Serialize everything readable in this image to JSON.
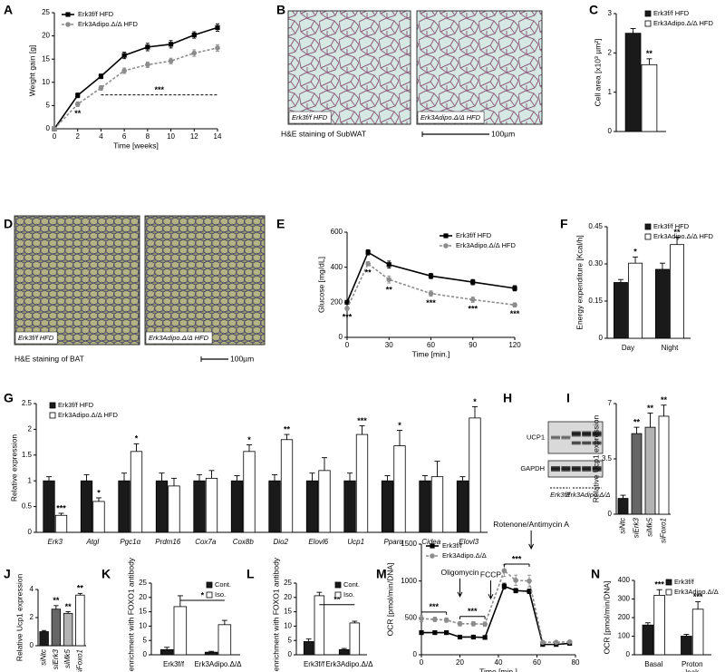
{
  "chart_data": [
    {
      "panel": "A",
      "type": "line",
      "xlabel": "Time [weeks]",
      "ylabel": "Weight gain [g]",
      "x": [
        0,
        2,
        4,
        6,
        8,
        10,
        12,
        14
      ],
      "xlim": [
        0,
        14
      ],
      "xticks": [
        0,
        2,
        4,
        6,
        8,
        10,
        12,
        14
      ],
      "ylim": [
        0,
        25
      ],
      "yticks": [
        0,
        5,
        10,
        15,
        20,
        25
      ],
      "legend": "upper left",
      "series": [
        {
          "name": "Erk3f/f HFD",
          "color": "#000000",
          "marker": "square",
          "dashed": false,
          "values": [
            0,
            7.2,
            11.3,
            15.8,
            17.6,
            18.2,
            20.2,
            21.8
          ],
          "errors": [
            0.2,
            0.5,
            0.5,
            0.7,
            0.8,
            0.8,
            0.7,
            0.8
          ]
        },
        {
          "name": "Erk3Adipo.Δ/Δ HFD",
          "color": "#8c8c8c",
          "marker": "circle",
          "dashed": true,
          "values": [
            0,
            5.3,
            8.8,
            12.5,
            13.8,
            14.6,
            16.3,
            17.4
          ],
          "errors": [
            0.2,
            0.5,
            0.5,
            0.6,
            0.6,
            0.6,
            0.7,
            0.7
          ],
          "significance": [
            null,
            "**",
            null,
            null,
            null,
            null,
            null,
            null
          ]
        }
      ],
      "brackets": [
        {
          "text": "***",
          "x1": 4,
          "x2": 14,
          "y": 7.3
        }
      ]
    },
    {
      "panel": "B",
      "type": "micrograph",
      "images": [
        "Erk3f/f HFD",
        "Erk3Adipo.Δ/Δ HFD"
      ],
      "caption": "H&E staining of SubWAT",
      "scale_bar": "100µm"
    },
    {
      "panel": "C",
      "type": "bar",
      "ylabel": "Cell area [x10³ µm²]",
      "categories": [
        null
      ],
      "ylim": [
        0,
        3
      ],
      "yticks": [
        0,
        1,
        2,
        3
      ],
      "legend": "upper right",
      "series": [
        {
          "name": "Erk3f/f HFD",
          "color": "#1a1a1a",
          "values": [
            2.5
          ],
          "errors": [
            0.12
          ]
        },
        {
          "name": "Erk3Adipo.Δ/Δ HFD",
          "color": "#ffffff",
          "values": [
            1.7
          ],
          "errors": [
            0.15
          ],
          "significance": [
            "**"
          ]
        }
      ]
    },
    {
      "panel": "D",
      "type": "micrograph",
      "images": [
        "Erk3f/f HFD",
        "Erk3Adipo.Δ/Δ HFD"
      ],
      "caption": "H&E staining of BAT",
      "scale_bar": "100µm"
    },
    {
      "panel": "E",
      "type": "line",
      "xlabel": "Time [min.]",
      "ylabel": "Glucose [mg/dL]",
      "x": [
        0,
        15,
        30,
        60,
        90,
        120
      ],
      "xlim": [
        0,
        120
      ],
      "xticks": [
        0,
        30,
        60,
        90,
        120
      ],
      "ylim": [
        0,
        600
      ],
      "yticks": [
        0,
        200,
        400,
        600
      ],
      "legend": "upper right",
      "series": [
        {
          "name": "Erk3f/f HFD",
          "color": "#000000",
          "marker": "square",
          "dashed": false,
          "values": [
            200,
            485,
            415,
            350,
            315,
            280
          ],
          "errors": [
            8,
            15,
            20,
            15,
            15,
            15
          ]
        },
        {
          "name": "Erk3Adipo.Δ/Δ HFD",
          "color": "#8c8c8c",
          "marker": "circle",
          "dashed": true,
          "values": [
            165,
            420,
            330,
            250,
            215,
            185
          ],
          "errors": [
            10,
            12,
            20,
            15,
            15,
            12
          ],
          "significance": [
            "***",
            "**",
            "**",
            "***",
            "***",
            "***"
          ]
        }
      ]
    },
    {
      "panel": "F",
      "type": "bar",
      "ylabel": "Energy expenditure [Kcal/h]",
      "categories": [
        "Day",
        "Night"
      ],
      "ylim": [
        0,
        0.45
      ],
      "yticks": [
        0,
        0.15,
        {
          "value": 0.3,
          "label": "0.30"
        },
        0.45
      ],
      "legend": "upper right",
      "series": [
        {
          "name": "Erk3f/f HFD",
          "color": "#1a1a1a",
          "values": [
            0.225,
            0.278
          ],
          "errors": [
            0.012,
            0.025
          ]
        },
        {
          "name": "Erk3Adipo.Δ/Δ HFD",
          "color": "#ffffff",
          "values": [
            0.303,
            0.378
          ],
          "errors": [
            0.025,
            0.03
          ],
          "significance": [
            "*",
            "**"
          ]
        }
      ]
    },
    {
      "panel": "G",
      "type": "bar",
      "ylabel": "Relative expression",
      "categories": [
        "Erk3",
        "Atgl",
        "Pgc1α",
        "Prdm16",
        "Cox7a",
        "Cox8b",
        "Dio2",
        "Elovl6",
        "Ucp1",
        "Pparα",
        "Cidea",
        "Elovl3"
      ],
      "ylim": [
        0,
        2.5
      ],
      "yticks": [
        0,
        0.5,
        1,
        1.5,
        2,
        2.5
      ],
      "legend": "upper left",
      "series": [
        {
          "name": "Erk3f/f HFD",
          "color": "#1a1a1a",
          "values": [
            1,
            1,
            1,
            1,
            1,
            1,
            1,
            1,
            1,
            1,
            1,
            1
          ],
          "errors": [
            0.08,
            0.12,
            0.15,
            0.15,
            0.12,
            0.1,
            0.12,
            0.15,
            0.15,
            0.1,
            0.1,
            0.08
          ]
        },
        {
          "name": "Erk3Adipo.Δ/Δ HFD",
          "color": "#ffffff",
          "values": [
            0.33,
            0.6,
            1.57,
            0.9,
            1.05,
            1.57,
            1.8,
            1.2,
            1.9,
            1.68,
            1.08,
            2.22
          ],
          "errors": [
            0.04,
            0.07,
            0.15,
            0.15,
            0.15,
            0.13,
            0.1,
            0.25,
            0.17,
            0.3,
            0.3,
            0.22
          ],
          "significance": [
            "***",
            "*",
            "*",
            null,
            null,
            "*",
            "**",
            null,
            "***",
            "*",
            null,
            "*"
          ]
        }
      ]
    },
    {
      "panel": "H",
      "type": "blot",
      "bands": [
        "UCP1",
        "GAPDH"
      ],
      "groups": [
        "Erk3f/f",
        "Erk3Adipo.Δ/Δ"
      ]
    },
    {
      "panel": "I",
      "type": "bar",
      "ylabel": "Relative Ucp1 expression",
      "categories": [
        "siNtc",
        "siErk3",
        "siMk5",
        "siFoxo1"
      ],
      "ylim": [
        0,
        7
      ],
      "yticks": [
        0,
        3.5,
        7
      ],
      "series": [
        {
          "colors": [
            "#1a1a1a",
            "#666666",
            "#b3b3b3",
            "#ffffff"
          ],
          "values": [
            1,
            5.1,
            5.5,
            6.2
          ],
          "errors": [
            0.2,
            0.4,
            0.9,
            0.7
          ],
          "significance": [
            null,
            "**",
            "**",
            "**"
          ]
        }
      ]
    },
    {
      "panel": "J",
      "type": "bar",
      "ylabel": "Relative Ucp1 expression",
      "categories": [
        "siNtc",
        "siErk3",
        "siMk5",
        "siFoxo1"
      ],
      "ylim": [
        0,
        4
      ],
      "yticks": [
        0,
        2,
        4
      ],
      "series": [
        {
          "colors": [
            "#1a1a1a",
            "#666666",
            "#b3b3b3",
            "#ffffff"
          ],
          "values": [
            1,
            2.6,
            2.3,
            3.6
          ],
          "errors": [
            0.08,
            0.25,
            0.12,
            0.12
          ],
          "significance": [
            null,
            "**",
            "**",
            "**"
          ]
        }
      ]
    },
    {
      "panel": "K",
      "type": "bar",
      "ylabel": "% enrichment with FOXO1 antibody",
      "categories": [
        "Erk3f/f",
        "Erk3Adipo.Δ/Δ"
      ],
      "ylim": [
        0,
        25
      ],
      "yticks": [
        0,
        5,
        10,
        15,
        20,
        25
      ],
      "legend": "upper right",
      "series": [
        {
          "name": "Cont.",
          "color": "#1a1a1a",
          "values": [
            1.8,
            0.9
          ],
          "errors": [
            0.8,
            0.3
          ]
        },
        {
          "name": "Iso.",
          "color": "#ffffff",
          "values": [
            16.8,
            10.5
          ],
          "errors": [
            3.8,
            1.5
          ]
        }
      ],
      "bracket": {
        "text": "*",
        "y": 19
      }
    },
    {
      "panel": "L",
      "type": "bar",
      "ylabel": "% enrichment with FOXO1 antibody",
      "categories": [
        "Erk3f/f",
        "Erk3Adipo.Δ/Δ"
      ],
      "ylim": [
        0,
        25
      ],
      "yticks": [
        0,
        5,
        10,
        15,
        20,
        25
      ],
      "legend": "upper right",
      "series": [
        {
          "name": "Cont.",
          "color": "#1a1a1a",
          "values": [
            4.6,
            1.8
          ],
          "errors": [
            0.9,
            0.4
          ]
        },
        {
          "name": "Iso.",
          "color": "#ffffff",
          "values": [
            20.6,
            11.1
          ],
          "errors": [
            1.2,
            0.6
          ]
        }
      ],
      "bracket": {
        "text": "**",
        "y": 17.5
      }
    },
    {
      "panel": "M",
      "type": "line",
      "xlabel": "Time [min.]",
      "ylabel": "OCR [pmol/min/DNA]",
      "x": [
        0,
        7,
        13,
        20,
        27,
        33,
        43,
        49,
        56,
        63,
        70,
        77
      ],
      "xlim": [
        0,
        80
      ],
      "xticks": [
        0,
        20,
        40,
        60,
        80
      ],
      "ylim": [
        0,
        1500
      ],
      "yticks": [
        0,
        500,
        1000,
        1500
      ],
      "legend": "upper left",
      "series": [
        {
          "name": "Erk3f/f",
          "color": "#000000",
          "marker": "square",
          "dashed": false,
          "values": [
            300,
            300,
            300,
            240,
            240,
            235,
            930,
            870,
            860,
            140,
            140,
            155
          ],
          "errors": [
            15,
            15,
            15,
            15,
            15,
            15,
            40,
            30,
            30,
            10,
            10,
            10
          ]
        },
        {
          "name": "Erk3Adipo.Δ/Δ",
          "color": "#8c8c8c",
          "marker": "circle",
          "dashed": true,
          "values": [
            490,
            480,
            470,
            420,
            420,
            415,
            1140,
            1010,
            1000,
            170,
            170,
            175
          ],
          "errors": [
            40,
            30,
            30,
            30,
            30,
            30,
            80,
            70,
            80,
            20,
            20,
            20
          ]
        }
      ],
      "brackets": [
        {
          "text": "***",
          "x1": 0,
          "x2": 13,
          "y": 580
        },
        {
          "text": "***",
          "x1": 20,
          "x2": 33,
          "y": 520
        },
        {
          "text": "***",
          "x1": 43,
          "x2": 56,
          "y": 1230
        }
      ],
      "events": [
        {
          "text": "Oligomycin",
          "x": 20,
          "y": 790
        },
        {
          "text": "FCCP",
          "x": 36,
          "y": 760
        },
        {
          "text": "Rotenone/Antimycin A",
          "x": 57,
          "y": 1440
        }
      ]
    },
    {
      "panel": "N",
      "type": "bar",
      "ylabel": "OCR [pmol/min/DNA]",
      "categories": [
        "Basal",
        "Proton leak"
      ],
      "ylim": [
        0,
        400
      ],
      "yticks": [
        0,
        100,
        200,
        300,
        400
      ],
      "legend": "upper right",
      "series": [
        {
          "name": "Erk3f/f",
          "color": "#1a1a1a",
          "values": [
            160,
            100
          ],
          "errors": [
            12,
            10
          ]
        },
        {
          "name": "Erk3Adipo.Δ/Δ",
          "color": "#ffffff",
          "values": [
            320,
            245
          ],
          "errors": [
            30,
            40
          ],
          "significance": [
            "***",
            "***"
          ]
        }
      ]
    }
  ]
}
